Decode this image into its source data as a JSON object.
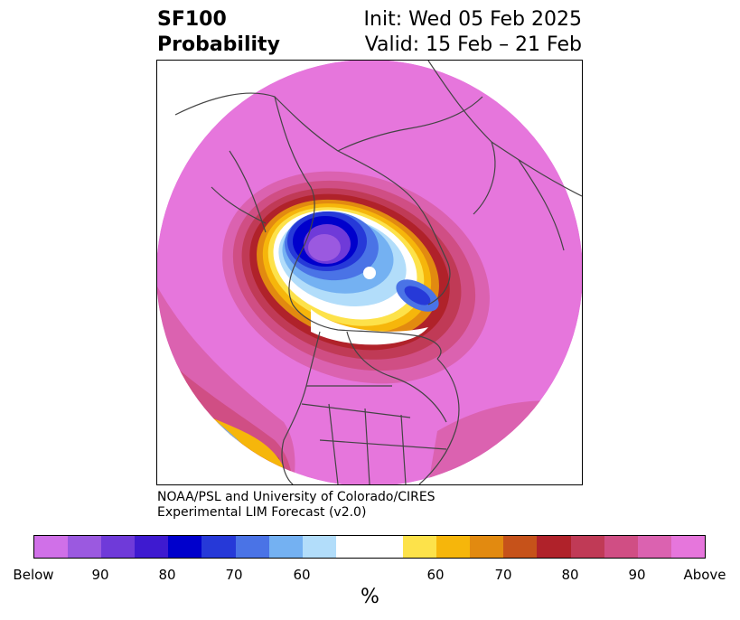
{
  "header": {
    "title_line1": "SF100",
    "title_line2": "Probability",
    "init": "Init: Wed 05 Feb 2025",
    "valid": "Valid: 15 Feb – 21 Feb"
  },
  "credit": {
    "line1": "NOAA/PSL and University of Colorado/CIRES",
    "line2": "Experimental LIM Forecast (v2.0)"
  },
  "colorbar": {
    "colors": [
      "#d070e8",
      "#9b59e0",
      "#6f3ad9",
      "#3e1ad0",
      "#0000cc",
      "#2639d8",
      "#4a73e6",
      "#74b1f2",
      "#b2ddfa",
      "#ffffff",
      "#fde24a",
      "#f6b60b",
      "#e28a10",
      "#c6521a",
      "#b0222a",
      "#c03a56",
      "#d04e84",
      "#db62b0",
      "#e676dc"
    ],
    "ticks": [
      "Below",
      "90",
      "80",
      "70",
      "60",
      "60",
      "70",
      "80",
      "90",
      "Above"
    ],
    "label": "%"
  },
  "map": {
    "projection": "polar-stereographic",
    "variable": "SF100 probability"
  }
}
